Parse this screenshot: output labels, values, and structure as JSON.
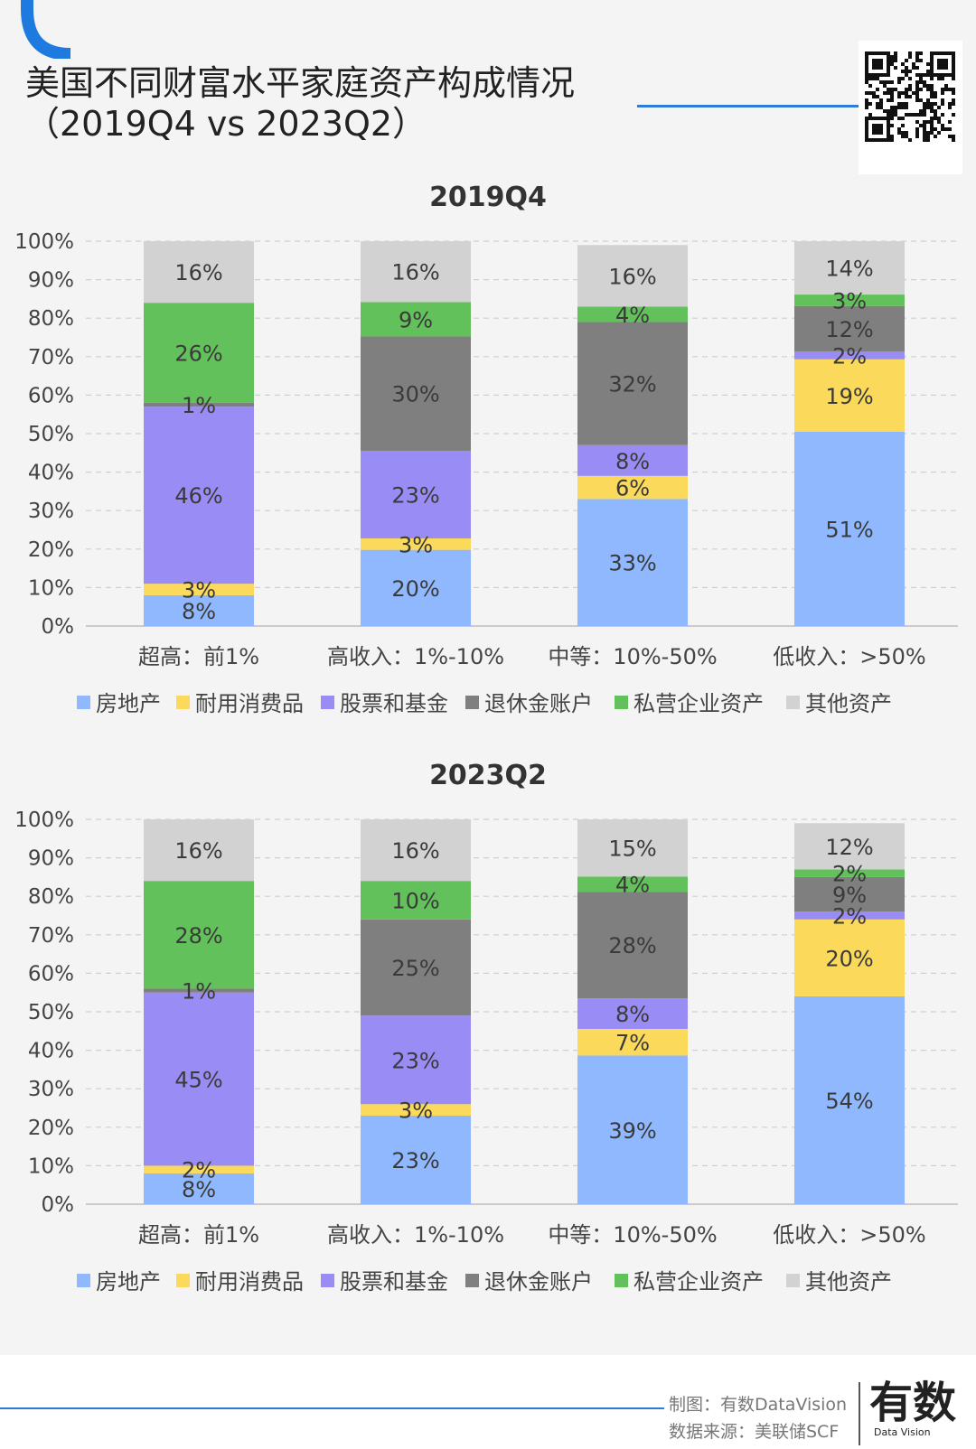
{
  "header": {
    "title_line1": "美国不同财富水平家庭资产构成情况",
    "title_line2": "（2019Q4 vs 2023Q2）"
  },
  "colors": {
    "accent": "#2f7bd8",
    "series": [
      "#8fb8ff",
      "#fad95b",
      "#9a8cf5",
      "#7f7f7f",
      "#62c15a",
      "#d3d2d3"
    ]
  },
  "chart_data": [
    {
      "type": "bar",
      "stacked": true,
      "title": "2019Q4",
      "categories": [
        "超高：前1%",
        "高收入：1%-10%",
        "中等：10%-50%",
        "低收入：>50%"
      ],
      "ylim": [
        0,
        100
      ],
      "yticks": [
        "0%",
        "10%",
        "20%",
        "30%",
        "40%",
        "50%",
        "60%",
        "70%",
        "80%",
        "90%",
        "100%"
      ],
      "grid": true,
      "legend_position": "bottom",
      "series": [
        {
          "name": "房地产",
          "values": [
            8,
            20,
            33,
            51
          ]
        },
        {
          "name": "耐用消费品",
          "values": [
            3,
            3,
            6,
            19
          ]
        },
        {
          "name": "股票和基金",
          "values": [
            46,
            23,
            8,
            2
          ]
        },
        {
          "name": "退休金账户",
          "values": [
            1,
            30,
            32,
            12
          ]
        },
        {
          "name": "私营企业资产",
          "values": [
            26,
            9,
            4,
            3
          ]
        },
        {
          "name": "其他资产",
          "values": [
            16,
            16,
            16,
            14
          ]
        }
      ]
    },
    {
      "type": "bar",
      "stacked": true,
      "title": "2023Q2",
      "categories": [
        "超高：前1%",
        "高收入：1%-10%",
        "中等：10%-50%",
        "低收入：>50%"
      ],
      "ylim": [
        0,
        100
      ],
      "yticks": [
        "0%",
        "10%",
        "20%",
        "30%",
        "40%",
        "50%",
        "60%",
        "70%",
        "80%",
        "90%",
        "100%"
      ],
      "grid": true,
      "legend_position": "bottom",
      "series": [
        {
          "name": "房地产",
          "values": [
            8,
            23,
            39,
            54
          ]
        },
        {
          "name": "耐用消费品",
          "values": [
            2,
            3,
            7,
            20
          ]
        },
        {
          "name": "股票和基金",
          "values": [
            45,
            23,
            8,
            2
          ]
        },
        {
          "name": "退休金账户",
          "values": [
            1,
            25,
            28,
            9
          ]
        },
        {
          "name": "私营企业资产",
          "values": [
            28,
            10,
            4,
            2
          ]
        },
        {
          "name": "其他资产",
          "values": [
            16,
            16,
            15,
            12
          ]
        }
      ]
    }
  ],
  "footer": {
    "credit_maker": "制图：有数DataVision",
    "credit_source": "数据来源：美联储SCF",
    "brand_logo": "有数",
    "brand_small": "Data Vision"
  }
}
